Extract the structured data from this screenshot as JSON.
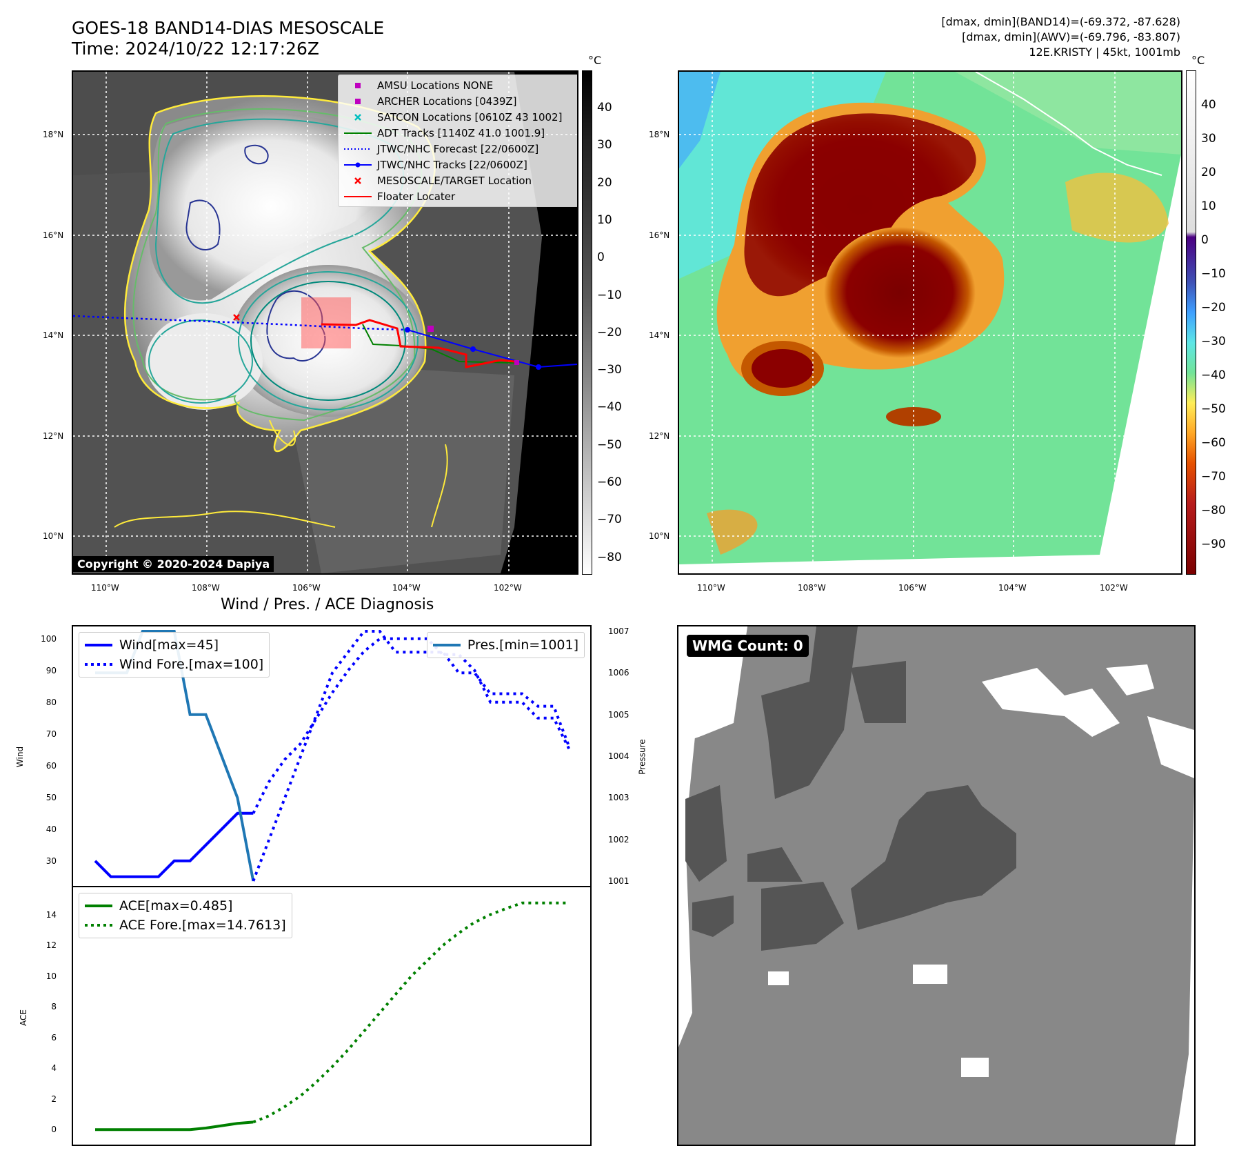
{
  "header": {
    "title_line1": "GOES-18 BAND14-DIAS MESOSCALE",
    "title_line2": "Time: 2024/10/22 12:17:26Z",
    "info_line1": "[dmax, dmin](BAND14)=(-69.372, -87.628)",
    "info_line2": "[dmax, dmin](AWV)=(-69.796, -83.807)",
    "info_line3": "12E.KRISTY | 45kt, 1001mb"
  },
  "map": {
    "lat_ticks": [
      "18°N",
      "16°N",
      "14°N",
      "12°N",
      "10°N"
    ],
    "lon_ticks": [
      "110°W",
      "108°W",
      "106°W",
      "104°W",
      "102°W"
    ],
    "copyright": "Copyright © 2020-2024 Dapiya",
    "legend": [
      {
        "label": "AMSU Locations NONE",
        "color": "#bf00bf",
        "kind": "square"
      },
      {
        "label": "ARCHER Locations [0439Z]",
        "color": "#bf00bf",
        "kind": "square"
      },
      {
        "label": "SATCON Locations [0610Z 43 1002]",
        "color": "#00bfbf",
        "kind": "x"
      },
      {
        "label": "ADT Tracks [1140Z 41.0 1001.9]",
        "color": "#008000",
        "kind": "line"
      },
      {
        "label": "JTWC/NHC Forecast [22/0600Z]",
        "color": "#0000ff",
        "kind": "dotted"
      },
      {
        "label": "JTWC/NHC Tracks [22/0600Z]",
        "color": "#0000ff",
        "kind": "linedot"
      },
      {
        "label": "MESOSCALE/TARGET Location",
        "color": "#ff0000",
        "kind": "x"
      },
      {
        "label": "Floater Locater",
        "color": "#ff0000",
        "kind": "line"
      }
    ]
  },
  "colorbar_left": {
    "unit": "°C",
    "ticks": [
      "40",
      "30",
      "20",
      "10",
      "0",
      "−10",
      "−20",
      "−30",
      "−40",
      "−50",
      "−60",
      "−70",
      "−80"
    ]
  },
  "colorbar_right": {
    "unit": "°C",
    "ticks": [
      "40",
      "30",
      "20",
      "10",
      "0",
      "−10",
      "−20",
      "−30",
      "−40",
      "−50",
      "−60",
      "−70",
      "−80",
      "−90"
    ]
  },
  "wmg": {
    "label": "WMG Count: 0"
  },
  "chart_data": [
    {
      "type": "line",
      "title": "Wind / Pres. / ACE Diagnosis",
      "ylabel": "Wind",
      "y2label": "Pressure",
      "ylim": [
        23,
        103
      ],
      "y2lim": [
        1000.95,
        1007.05
      ],
      "yticks": [
        "100",
        "90",
        "80",
        "70",
        "60",
        "50",
        "40",
        "30"
      ],
      "y2ticks": [
        "1007",
        "1006",
        "1005",
        "1004",
        "1003",
        "1002",
        "1001"
      ],
      "series": [
        {
          "name": "Wind[max=45]",
          "color": "#0000ff",
          "style": "solid",
          "axis": "left",
          "x": [
            0,
            1,
            2,
            3,
            4,
            5,
            6,
            7,
            8,
            9,
            10
          ],
          "y": [
            30,
            25,
            25,
            25,
            25,
            30,
            30,
            35,
            40,
            45,
            45
          ]
        },
        {
          "name": "Wind Fore.[max=100]",
          "color": "#0000ff",
          "style": "dotted",
          "axis": "left",
          "x": [
            10,
            11,
            12,
            13,
            14,
            15,
            16,
            17,
            18,
            19,
            20,
            21,
            22,
            23,
            24,
            25,
            26,
            27,
            28,
            29,
            30
          ],
          "y": [
            45,
            55,
            62,
            67,
            75,
            83,
            90,
            96,
            100,
            100,
            100,
            100,
            95,
            95,
            90,
            80,
            80,
            80,
            75,
            75,
            65
          ]
        },
        {
          "name": "Pres.[min=1001]",
          "color": "#1f77b4",
          "style": "solid",
          "axis": "right",
          "x": [
            0,
            1,
            2,
            3,
            4,
            5,
            6,
            7,
            8,
            9,
            10
          ],
          "y": [
            1006,
            1006,
            1006,
            1007,
            1007,
            1007,
            1005,
            1005,
            1004,
            1003,
            1001
          ]
        },
        {
          "name": "",
          "color": "#0000ff",
          "style": "dotted",
          "axis": "right",
          "x": [
            10,
            11,
            12,
            13,
            14,
            15,
            16,
            17,
            18,
            19,
            20,
            21,
            22,
            23,
            24,
            25,
            26,
            27,
            28,
            29,
            30
          ],
          "y": [
            1001,
            1002,
            1003,
            1004,
            1005,
            1006,
            1006.5,
            1007,
            1007,
            1006.5,
            1006.5,
            1006.5,
            1006.5,
            1006,
            1006,
            1005.5,
            1005.5,
            1005.5,
            1005.2,
            1005.2,
            1004.2
          ]
        }
      ]
    },
    {
      "type": "line",
      "ylabel": "ACE",
      "ylim": [
        -0.8,
        15.6
      ],
      "yticks": [
        "14",
        "12",
        "10",
        "8",
        "6",
        "4",
        "2",
        "0"
      ],
      "series": [
        {
          "name": "ACE[max=0.485]",
          "color": "#008000",
          "style": "solid",
          "x": [
            0,
            1,
            2,
            3,
            4,
            5,
            6,
            7,
            8,
            9,
            10
          ],
          "y": [
            0,
            0,
            0,
            0,
            0,
            0,
            0,
            0.1,
            0.25,
            0.4,
            0.485
          ]
        },
        {
          "name": "ACE Fore.[max=14.7613]",
          "color": "#008000",
          "style": "dotted",
          "x": [
            10,
            11,
            12,
            13,
            14,
            15,
            16,
            17,
            18,
            19,
            20,
            21,
            22,
            23,
            24,
            25,
            26,
            27,
            28,
            29,
            30
          ],
          "y": [
            0.485,
            0.9,
            1.5,
            2.2,
            3.1,
            4.1,
            5.2,
            6.4,
            7.6,
            8.8,
            10.0,
            11.0,
            12.0,
            12.8,
            13.5,
            14.0,
            14.4,
            14.76,
            14.76,
            14.76,
            14.76
          ]
        }
      ]
    }
  ]
}
